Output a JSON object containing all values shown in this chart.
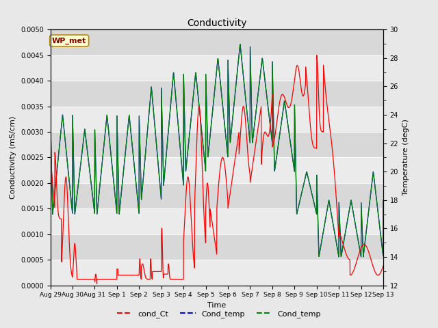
{
  "title": "Conductivity",
  "xlabel": "Time",
  "ylabel_left": "Conductivity (mS/cm)",
  "ylabel_right": "Temperature (degC)",
  "ylim_left": [
    0,
    0.005
  ],
  "ylim_right": [
    12,
    30
  ],
  "yticks_left": [
    0.0,
    0.0005,
    0.001,
    0.0015,
    0.002,
    0.0025,
    0.003,
    0.0035,
    0.004,
    0.0045,
    0.005
  ],
  "yticks_right": [
    12,
    14,
    16,
    18,
    20,
    22,
    24,
    26,
    28,
    30
  ],
  "xtick_labels": [
    "Aug 29",
    "Aug 30",
    "Aug 31",
    "Sep 1",
    "Sep 2",
    "Sep 3",
    "Sep 4",
    "Sep 5",
    "Sep 6",
    "Sep 7",
    "Sep 8",
    "Sep 9",
    "Sep 10",
    "Sep 11",
    "Sep 12",
    "Sep 13"
  ],
  "fig_bg": "#e8e8e8",
  "plot_bg": "#e8e8e8",
  "band_light": "#ebebeb",
  "band_dark": "#d8d8d8",
  "wp_label": "WP_met",
  "legend_entries": [
    "cond_Ct",
    "Cond_temp",
    "Cond_temp"
  ],
  "legend_colors": [
    "red",
    "blue",
    "green"
  ],
  "n_days": 15
}
